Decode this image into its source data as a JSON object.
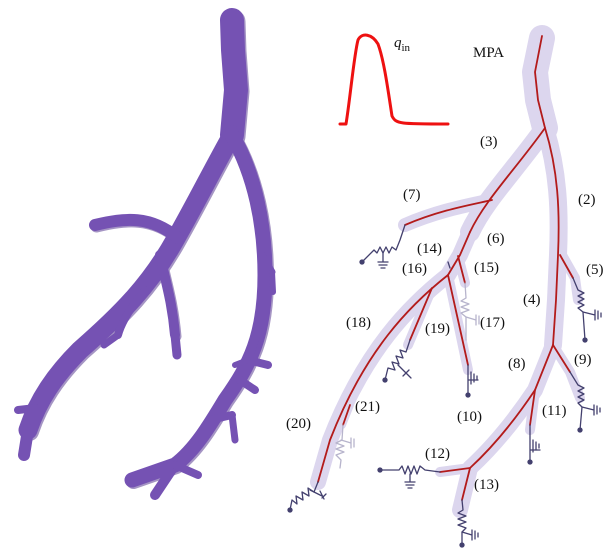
{
  "figure": {
    "inflow_label": "q",
    "inflow_subscript": "in",
    "mpa_label": "MPA",
    "vessel_labels": [
      "(2)",
      "(3)",
      "(4)",
      "(5)",
      "(6)",
      "(7)",
      "(8)",
      "(9)",
      "(10)",
      "(11)",
      "(12)",
      "(13)",
      "(14)",
      "(15)",
      "(16)",
      "(17)",
      "(18)",
      "(19)",
      "(20)",
      "(21)"
    ]
  },
  "colors": {
    "vessel_3d": "#7552b3",
    "vessel_3d_dark": "#5c3f94",
    "halo": "#dcd6ee",
    "centerline": "#b31b1b",
    "inflow_curve": "#ee1111",
    "windkessel": "#43406e",
    "windkessel_faded": "#b7b4cc"
  }
}
